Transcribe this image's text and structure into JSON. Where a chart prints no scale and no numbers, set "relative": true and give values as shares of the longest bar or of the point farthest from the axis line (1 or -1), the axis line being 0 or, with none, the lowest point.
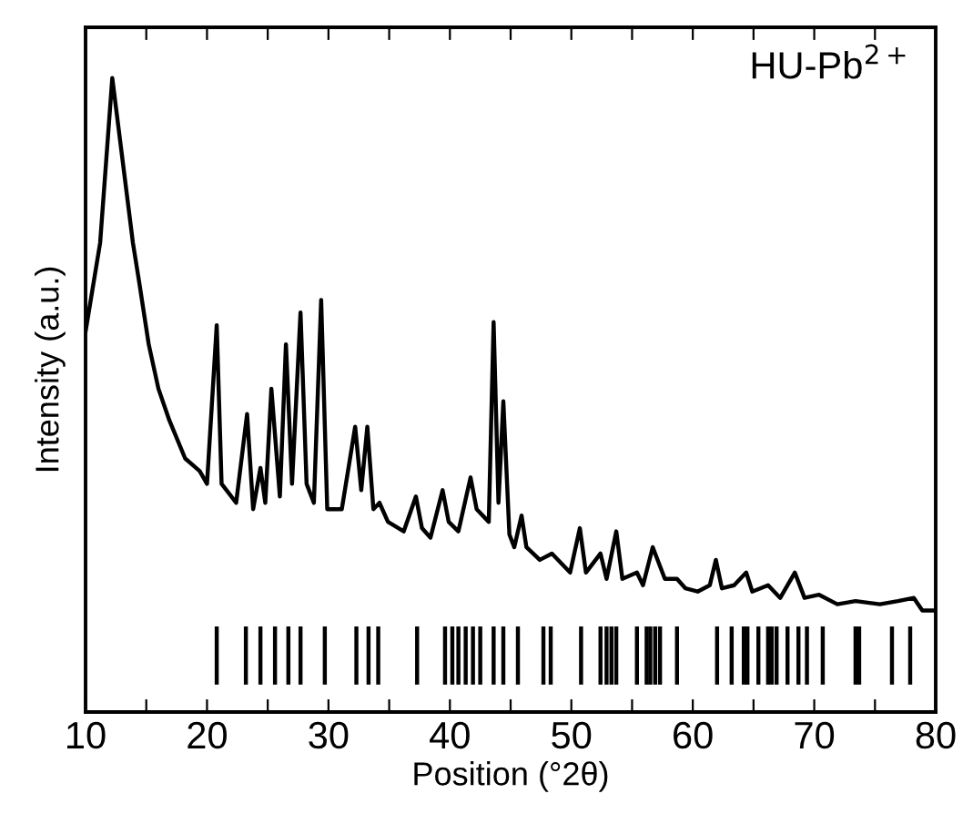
{
  "chart_data": {
    "type": "line",
    "title": "HU-Pb$^{2+}$",
    "xlabel": "Position (°2θ)",
    "ylabel": "Intensity (a.u.)",
    "relative": true,
    "xlim": [
      10,
      80
    ],
    "xticks": [
      10,
      {
        "value": 15,
        "label": null
      },
      20,
      {
        "value": 25,
        "label": null
      },
      30,
      {
        "value": 35,
        "label": null
      },
      40,
      {
        "value": 45,
        "label": null
      },
      50,
      {
        "value": 55,
        "label": null
      },
      60,
      {
        "value": 65,
        "label": null
      },
      70,
      {
        "value": 75,
        "label": null
      },
      80
    ],
    "grid": false,
    "legend": false,
    "marker": "none",
    "line_style": "solid",
    "series": [
      {
        "color": "#000000",
        "x": [
          10.0,
          11.2,
          12.2,
          13.9,
          14.4,
          15.2,
          16.0,
          16.9,
          18.2,
          19.4,
          20.0,
          20.8,
          21.2,
          22.4,
          23.3,
          23.8,
          24.4,
          24.8,
          25.3,
          26.0,
          26.5,
          27.0,
          27.7,
          28.2,
          28.8,
          29.4,
          29.9,
          31.1,
          32.2,
          32.7,
          33.2,
          33.7,
          34.2,
          34.9,
          36.2,
          37.2,
          37.7,
          38.4,
          39.4,
          39.9,
          40.7,
          41.7,
          42.2,
          43.2,
          43.6,
          44.0,
          44.4,
          44.9,
          45.3,
          45.9,
          46.3,
          47.4,
          48.4,
          49.9,
          50.7,
          51.2,
          52.4,
          52.9,
          53.7,
          54.2,
          55.4,
          55.9,
          56.7,
          57.7,
          58.7,
          59.4,
          60.4,
          61.4,
          61.9,
          62.4,
          63.4,
          64.4,
          64.9,
          66.2,
          67.2,
          68.4,
          69.2,
          70.4,
          71.9,
          73.4,
          75.4,
          76.9,
          78.2,
          78.9,
          80.0
        ],
        "values": [
          0.6,
          0.74,
          1.0,
          0.74,
          0.68,
          0.58,
          0.51,
          0.46,
          0.4,
          0.38,
          0.36,
          0.61,
          0.36,
          0.33,
          0.47,
          0.32,
          0.385,
          0.33,
          0.51,
          0.34,
          0.58,
          0.36,
          0.63,
          0.36,
          0.33,
          0.65,
          0.32,
          0.32,
          0.45,
          0.35,
          0.45,
          0.32,
          0.33,
          0.3,
          0.285,
          0.34,
          0.29,
          0.275,
          0.35,
          0.3,
          0.285,
          0.37,
          0.32,
          0.3,
          0.615,
          0.33,
          0.49,
          0.28,
          0.26,
          0.31,
          0.26,
          0.24,
          0.25,
          0.22,
          0.29,
          0.22,
          0.25,
          0.21,
          0.285,
          0.21,
          0.22,
          0.2,
          0.26,
          0.21,
          0.21,
          0.195,
          0.19,
          0.2,
          0.24,
          0.195,
          0.2,
          0.22,
          0.19,
          0.2,
          0.18,
          0.22,
          0.18,
          0.185,
          0.17,
          0.175,
          0.17,
          0.175,
          0.18,
          0.16,
          0.16
        ]
      }
    ],
    "ref_lines": [
      {
        "axis": "x",
        "value": 20.8,
        "color": "#000000"
      },
      {
        "axis": "x",
        "value": 23.2,
        "color": "#000000"
      },
      {
        "axis": "x",
        "value": 24.4,
        "color": "#000000"
      },
      {
        "axis": "x",
        "value": 25.6,
        "color": "#000000"
      },
      {
        "axis": "x",
        "value": 26.7,
        "color": "#000000"
      },
      {
        "axis": "x",
        "value": 27.7,
        "color": "#000000"
      },
      {
        "axis": "x",
        "value": 29.7,
        "color": "#000000"
      },
      {
        "axis": "x",
        "value": 32.3,
        "color": "#000000"
      },
      {
        "axis": "x",
        "value": 33.3,
        "color": "#000000"
      },
      {
        "axis": "x",
        "value": 34.1,
        "color": "#000000"
      },
      {
        "axis": "x",
        "value": 37.3,
        "color": "#000000"
      },
      {
        "axis": "x",
        "value": 39.6,
        "color": "#000000"
      },
      {
        "axis": "x",
        "value": 40.2,
        "color": "#000000"
      },
      {
        "axis": "x",
        "value": 40.7,
        "color": "#000000"
      },
      {
        "axis": "x",
        "value": 41.3,
        "color": "#000000"
      },
      {
        "axis": "x",
        "value": 41.9,
        "color": "#000000"
      },
      {
        "axis": "x",
        "value": 42.5,
        "color": "#000000"
      },
      {
        "axis": "x",
        "value": 43.6,
        "color": "#000000"
      },
      {
        "axis": "x",
        "value": 44.4,
        "color": "#000000"
      },
      {
        "axis": "x",
        "value": 45.6,
        "color": "#000000"
      },
      {
        "axis": "x",
        "value": 47.7,
        "color": "#000000"
      },
      {
        "axis": "x",
        "value": 48.3,
        "color": "#000000"
      },
      {
        "axis": "x",
        "value": 50.8,
        "color": "#000000"
      },
      {
        "axis": "x",
        "value": 52.4,
        "color": "#000000"
      },
      {
        "axis": "x",
        "value": 52.9,
        "color": "#000000"
      },
      {
        "axis": "x",
        "value": 53.3,
        "color": "#000000"
      },
      {
        "axis": "x",
        "value": 53.7,
        "color": "#000000"
      },
      {
        "axis": "x",
        "value": 55.4,
        "color": "#000000"
      },
      {
        "axis": "x",
        "value": 56.2,
        "color": "#000000"
      },
      {
        "axis": "x",
        "value": 56.5,
        "color": "#000000"
      },
      {
        "axis": "x",
        "value": 56.9,
        "color": "#000000"
      },
      {
        "axis": "x",
        "value": 57.3,
        "color": "#000000"
      },
      {
        "axis": "x",
        "value": 58.7,
        "color": "#000000"
      },
      {
        "axis": "x",
        "value": 62.0,
        "color": "#000000"
      },
      {
        "axis": "x",
        "value": 63.2,
        "color": "#000000"
      },
      {
        "axis": "x",
        "value": 64.2,
        "color": "#000000"
      },
      {
        "axis": "x",
        "value": 64.5,
        "color": "#000000"
      },
      {
        "axis": "x",
        "value": 65.4,
        "color": "#000000"
      },
      {
        "axis": "x",
        "value": 66.2,
        "color": "#000000"
      },
      {
        "axis": "x",
        "value": 66.5,
        "color": "#000000"
      },
      {
        "axis": "x",
        "value": 66.9,
        "color": "#000000"
      },
      {
        "axis": "x",
        "value": 67.8,
        "color": "#000000"
      },
      {
        "axis": "x",
        "value": 68.7,
        "color": "#000000"
      },
      {
        "axis": "x",
        "value": 69.4,
        "color": "#000000"
      },
      {
        "axis": "x",
        "value": 70.7,
        "color": "#000000"
      },
      {
        "axis": "x",
        "value": 73.4,
        "color": "#000000"
      },
      {
        "axis": "x",
        "value": 73.7,
        "color": "#000000"
      },
      {
        "axis": "x",
        "value": 76.4,
        "color": "#000000"
      },
      {
        "axis": "x",
        "value": 77.9,
        "color": "#000000"
      }
    ]
  }
}
